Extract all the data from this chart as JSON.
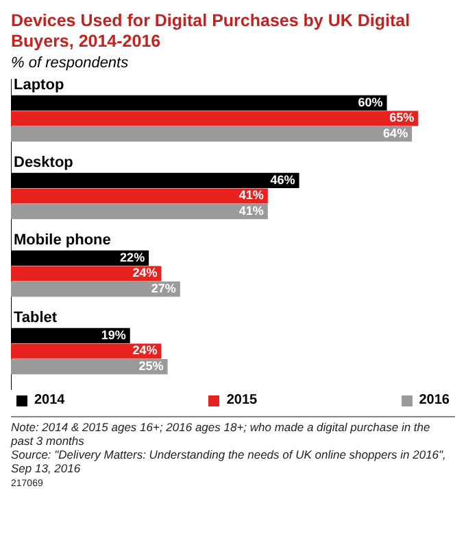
{
  "chart_data": {
    "type": "bar",
    "orientation": "horizontal",
    "title": "Devices Used for Digital Purchases by UK Digital Buyers, 2014-2016",
    "subtitle": "% of respondents",
    "categories": [
      "Laptop",
      "Desktop",
      "Mobile phone",
      "Tablet"
    ],
    "series": [
      {
        "name": "2014",
        "color": "#000000",
        "values": [
          60,
          46,
          22,
          19
        ],
        "value_labels": [
          "60%",
          "46%",
          "22%",
          "19%"
        ]
      },
      {
        "name": "2015",
        "color": "#e8231f",
        "values": [
          65,
          41,
          24,
          24
        ],
        "value_labels": [
          "65%",
          "41%",
          "24%",
          "24%"
        ]
      },
      {
        "name": "2016",
        "color": "#9a9a9a",
        "values": [
          64,
          41,
          27,
          25
        ],
        "value_labels": [
          "64%",
          "41%",
          "27%",
          "25%"
        ]
      }
    ],
    "legend": "bottom",
    "annotations": [
      "Note: 2014 & 2015 ages 16+; 2016 ages 18+; who made a digital purchase in the past 3 months",
      "Source: \"Delivery Matters: Understanding the needs of UK online shoppers in 2016\", Sep 13, 2016",
      "217069"
    ]
  }
}
